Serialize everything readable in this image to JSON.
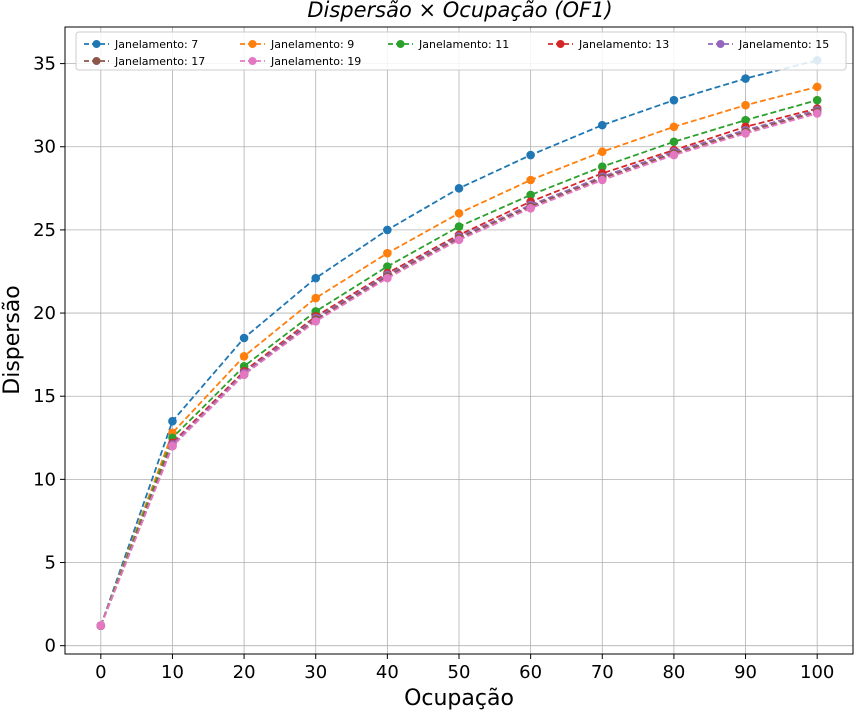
{
  "chart_data": {
    "type": "line",
    "title": "Dispersão × Ocupação (OF1)",
    "xlabel": "Ocupação",
    "ylabel": "Dispersão",
    "x": [
      0,
      10,
      20,
      30,
      40,
      50,
      60,
      70,
      80,
      90,
      100
    ],
    "xticks": [
      "0",
      "10",
      "20",
      "30",
      "40",
      "50",
      "60",
      "70",
      "80",
      "90",
      "100"
    ],
    "yticks": [
      "0",
      "5",
      "10",
      "15",
      "20",
      "25",
      "30",
      "35"
    ],
    "xlim": [
      -5,
      105
    ],
    "ylim": [
      -0.5,
      37.2
    ],
    "grid": true,
    "legend_position": "top",
    "series": [
      {
        "name": "Janelamento: 7",
        "color": "#1f77b4",
        "values": [
          1.2,
          13.5,
          18.5,
          22.1,
          25.0,
          27.5,
          29.5,
          31.3,
          32.8,
          34.1,
          35.2
        ]
      },
      {
        "name": "Janelamento: 9",
        "color": "#ff7f0e",
        "values": [
          1.2,
          12.8,
          17.4,
          20.9,
          23.6,
          26.0,
          28.0,
          29.7,
          31.2,
          32.5,
          33.6
        ]
      },
      {
        "name": "Janelamento: 11",
        "color": "#2ca02c",
        "values": [
          1.2,
          12.5,
          16.8,
          20.1,
          22.8,
          25.2,
          27.1,
          28.8,
          30.3,
          31.6,
          32.8
        ]
      },
      {
        "name": "Janelamento: 13",
        "color": "#d62728",
        "values": [
          1.2,
          12.2,
          16.5,
          19.8,
          22.4,
          24.7,
          26.7,
          28.4,
          29.8,
          31.2,
          32.3
        ]
      },
      {
        "name": "Janelamento: 15",
        "color": "#9467bd",
        "values": [
          1.2,
          12.1,
          16.4,
          19.7,
          22.3,
          24.6,
          26.5,
          28.2,
          29.7,
          31.0,
          32.2
        ]
      },
      {
        "name": "Janelamento: 17",
        "color": "#8c564b",
        "values": [
          1.2,
          12.0,
          16.3,
          19.6,
          22.2,
          24.5,
          26.4,
          28.1,
          29.6,
          30.9,
          32.1
        ]
      },
      {
        "name": "Janelamento: 19",
        "color": "#e377c2",
        "values": [
          1.2,
          12.0,
          16.3,
          19.5,
          22.1,
          24.4,
          26.3,
          28.0,
          29.5,
          30.8,
          32.0
        ]
      }
    ]
  }
}
